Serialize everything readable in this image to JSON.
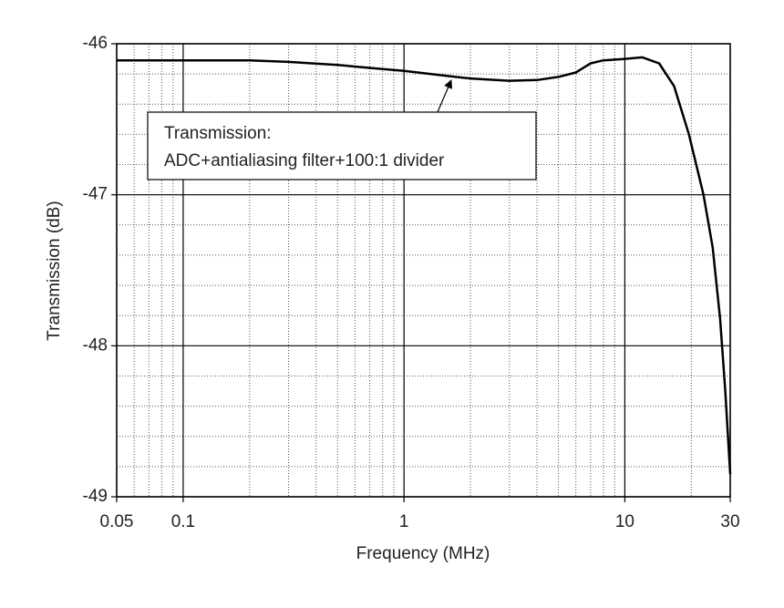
{
  "chart_data": {
    "type": "line",
    "x_label": "Frequency (MHz)",
    "y_label": "Transmission (dB)",
    "log_x": true,
    "grid": true,
    "x": [
      0.05,
      0.1,
      0.2,
      0.3,
      0.5,
      0.7,
      1,
      1.5,
      2,
      3,
      4,
      5,
      6,
      7,
      8,
      10,
      12,
      14.3,
      16.7,
      19.5,
      22.7,
      25,
      27,
      28.5,
      30
    ],
    "series": [
      {
        "name": "Transmission",
        "color": "#000000",
        "values": [
          -46.11,
          -46.11,
          -46.11,
          -46.12,
          -46.14,
          -46.16,
          -46.18,
          -46.21,
          -46.23,
          -46.245,
          -46.24,
          -46.22,
          -46.19,
          -46.13,
          -46.11,
          -46.1,
          -46.09,
          -46.13,
          -46.28,
          -46.6,
          -47.0,
          -47.35,
          -47.82,
          -48.3,
          -48.85
        ]
      }
    ],
    "xlim": [
      0.05,
      30
    ],
    "xticks": [
      0.05,
      0.1,
      1,
      10,
      30
    ],
    "xminor": [
      0.06,
      0.07,
      0.08,
      0.09,
      0.2,
      0.3,
      0.4,
      0.5,
      0.6,
      0.7,
      0.8,
      0.9,
      2,
      3,
      4,
      5,
      6,
      7,
      8,
      9,
      20
    ],
    "ylim": [
      -49,
      -46
    ],
    "yticks": [
      -49,
      -48,
      -47,
      -46
    ],
    "yminor": [
      -46.2,
      -46.4,
      -46.6,
      -46.8,
      -47.2,
      -47.4,
      -47.6,
      -47.8,
      -48.2,
      -48.4,
      -48.6,
      -48.8
    ],
    "annotation": {
      "lines": [
        "Transmission:",
        "ADC+antialiasing filter+100:1 divider"
      ]
    }
  }
}
